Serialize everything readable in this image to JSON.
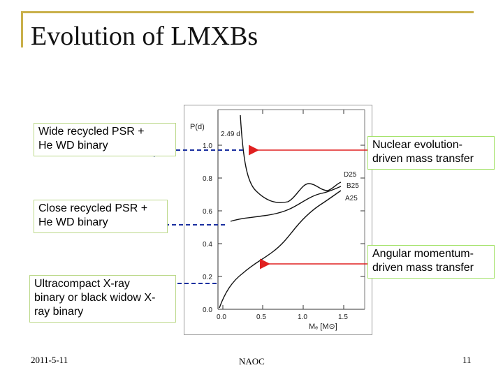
{
  "slide": {
    "title": "Evolution of LMXBs"
  },
  "callouts": {
    "wide_line1": "Wide recycled PSR +",
    "wide_line2": "He WD binary",
    "close_line1": "Close recycled PSR +",
    "close_line2": "He WD binary",
    "ultra_line1": "Ultracompact X-ray",
    "ultra_line2": "binary or black widow X-",
    "ultra_line3": "ray binary",
    "nuclear_line1": "Nuclear evolution-",
    "nuclear_line2": "driven mass transfer",
    "angular_line1": "Angular momentum-",
    "angular_line2": "driven mass transfer"
  },
  "figure": {
    "ylabel": "P(d)",
    "xlabel": "Mₑ [M⊙]",
    "period_note": "2.49 d",
    "yticks": [
      "0.0",
      "0.2",
      "0.4",
      "0.6",
      "0.8",
      "1.0"
    ],
    "xticks": [
      "0.0",
      "0.5",
      "1.0",
      "1.5"
    ],
    "curve_labels": [
      "D25",
      "B25",
      "A25"
    ]
  },
  "footer": {
    "date": "2011-5-11",
    "center": "NAOC",
    "page": "11"
  },
  "colors": {
    "frame": "#c9b04a",
    "red_arrow": "#e02020",
    "blue_arrow": "#1a2fa0"
  }
}
